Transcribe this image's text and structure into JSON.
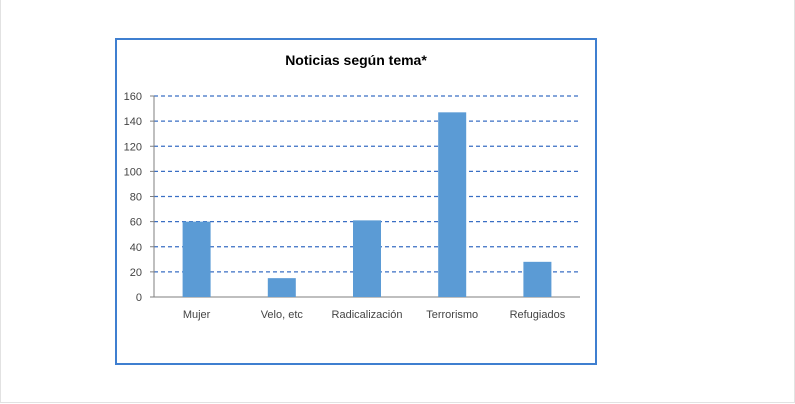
{
  "chart_data": {
    "type": "bar",
    "title": "Noticias según tema*",
    "categories": [
      "Mujer",
      "Velo, etc",
      "Radicalización",
      "Terrorismo",
      "Refugiados"
    ],
    "values": [
      60,
      15,
      61,
      147,
      28
    ],
    "ylim": [
      0,
      160
    ],
    "yticks": [
      0,
      20,
      40,
      60,
      80,
      100,
      120,
      140,
      160
    ],
    "grid": "dashed horizontal",
    "colors": {
      "bar": "#5b9bd5",
      "grid": "#3a6fc4",
      "frame": "#3f7fd0"
    }
  }
}
